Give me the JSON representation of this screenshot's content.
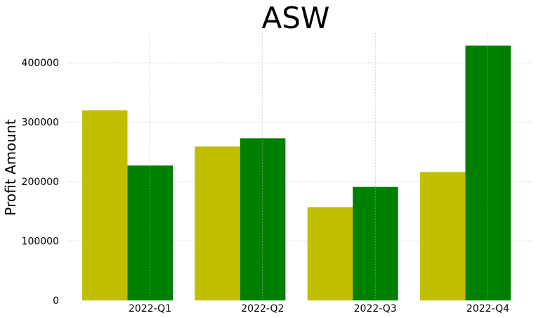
{
  "chart_data": {
    "type": "bar",
    "title": "ASW",
    "xlabel": "",
    "ylabel": "Profit Amount",
    "categories": [
      "2022-Q1",
      "2022-Q2",
      "2022-Q3",
      "2022-Q4"
    ],
    "series": [
      {
        "values": [
          320000,
          259000,
          157000,
          216000
        ],
        "color": "#bfbf00"
      },
      {
        "values": [
          227000,
          273000,
          191000,
          429000
        ],
        "color": "#008000"
      }
    ],
    "ylim": [
      0,
      450000
    ],
    "yticks": [
      "0",
      "100000",
      "200000",
      "300000",
      "400000"
    ],
    "grid": true
  }
}
